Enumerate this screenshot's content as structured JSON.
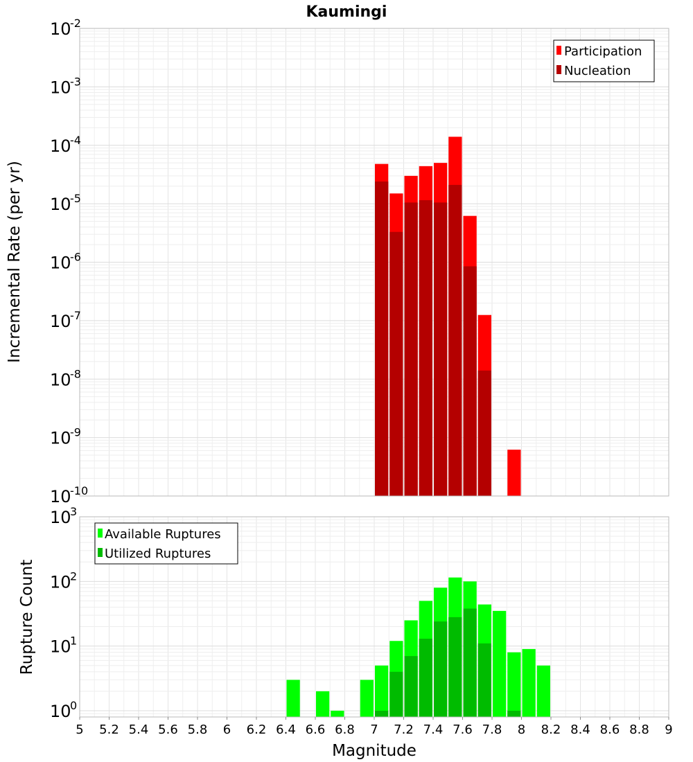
{
  "chart_data": [
    {
      "type": "bar",
      "title": "Kaumingi",
      "ylabel": "Incremental Rate (per yr)",
      "xlabel": "",
      "x_bin_centers": [
        7.05,
        7.15,
        7.25,
        7.35,
        7.45,
        7.55,
        7.65,
        7.75,
        7.85,
        7.95
      ],
      "series": [
        {
          "name": "Participation",
          "color": "#ff0000",
          "values": [
            4.8e-05,
            1.5e-05,
            3e-05,
            4.4e-05,
            5e-05,
            0.00014,
            6.2e-06,
            1.25e-07,
            null,
            6.2e-10
          ]
        },
        {
          "name": "Nucleation",
          "color": "#b40000",
          "values": [
            2.4e-05,
            3.3e-06,
            1.05e-05,
            1.15e-05,
            1.05e-05,
            2.1e-05,
            8.5e-07,
            1.4e-08,
            null,
            null
          ]
        }
      ],
      "xlim": [
        5,
        9
      ],
      "ylim": [
        1e-10,
        0.01
      ],
      "yscale": "log",
      "y_tick_exponents": [
        "-10",
        "-9",
        "-8",
        "-7",
        "-6",
        "-5",
        "-4",
        "-3",
        "-2"
      ],
      "y_tick_base": "10",
      "legend_position": "top-right",
      "grid": true
    },
    {
      "type": "bar",
      "title": "",
      "ylabel": "Rupture Count",
      "xlabel": "Magnitude",
      "x_bin_centers": [
        6.45,
        6.65,
        6.75,
        6.95,
        7.05,
        7.15,
        7.25,
        7.35,
        7.45,
        7.55,
        7.65,
        7.75,
        7.85,
        7.95,
        8.05,
        8.15
      ],
      "series": [
        {
          "name": "Available Ruptures",
          "color": "#00ff00",
          "values": [
            3,
            2,
            1,
            3,
            5,
            12,
            25,
            50,
            80,
            115,
            100,
            44,
            35,
            8,
            9,
            5
          ]
        },
        {
          "name": "Utilized Ruptures",
          "color": "#00bb00",
          "values": [
            null,
            null,
            null,
            null,
            1,
            4,
            7,
            13,
            24,
            28,
            38,
            11,
            null,
            1,
            null,
            null
          ]
        }
      ],
      "x_tick_labels": [
        "5",
        "5.2",
        "5.4",
        "5.6",
        "5.8",
        "6",
        "6.2",
        "6.4",
        "6.6",
        "6.8",
        "7",
        "7.2",
        "7.4",
        "7.6",
        "7.8",
        "8",
        "8.2",
        "8.4",
        "8.6",
        "8.8",
        "9"
      ],
      "xlim": [
        5,
        9
      ],
      "ylim": [
        0.8,
        1000
      ],
      "yscale": "log",
      "y_tick_exponents": [
        "0",
        "1",
        "2",
        "3"
      ],
      "y_tick_base": "10",
      "legend_position": "top-left",
      "grid": true
    }
  ]
}
